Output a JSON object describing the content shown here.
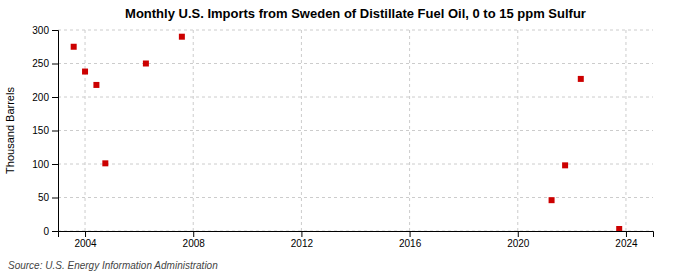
{
  "chart_data": {
    "type": "scatter",
    "title": "Monthly U.S. Imports from Sweden of Distillate Fuel Oil, 0 to 15 ppm Sulfur",
    "y_label": "Thousand Barrels",
    "annotations": [
      "Source: U.S. Energy Information Administration"
    ],
    "x": [
      2003.58,
      2004.0,
      2004.42,
      2004.75,
      2006.25,
      2007.58,
      2021.25,
      2021.75,
      2022.33,
      2023.75
    ],
    "values": [
      275,
      238,
      218,
      101,
      250,
      290,
      46,
      98,
      227,
      3
    ],
    "color": "#cc0000",
    "marker": "square",
    "xlim": [
      2003.0,
      2025.0
    ],
    "ylim": [
      0,
      300
    ],
    "xticks": [
      2004,
      2008,
      2012,
      2016,
      2020,
      2024
    ],
    "yticks": [
      0,
      50,
      100,
      150,
      200,
      250,
      300
    ],
    "grid": true
  }
}
